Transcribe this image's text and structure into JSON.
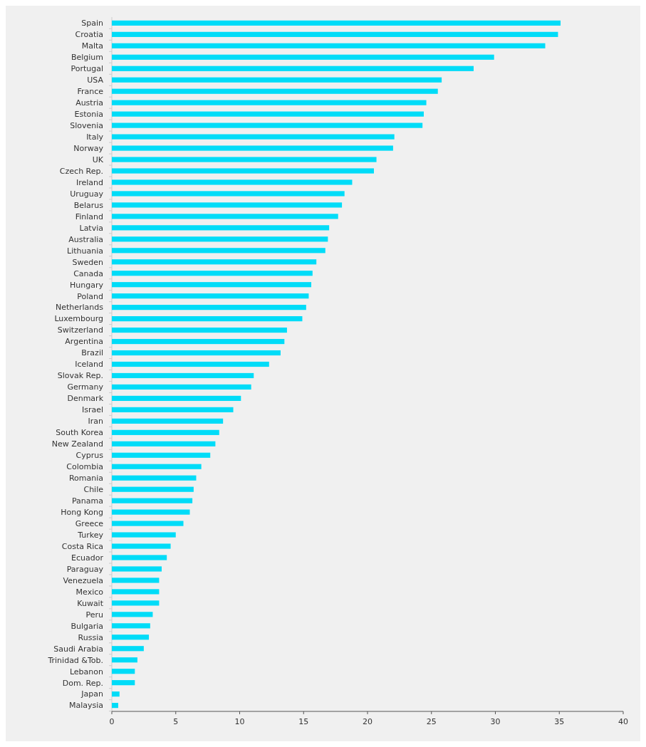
{
  "chart_data": {
    "type": "bar",
    "orientation": "horizontal",
    "categories": [
      "Spain",
      "Croatia",
      "Malta",
      "Belgium",
      "Portugal",
      "USA",
      "France",
      "Austria",
      "Estonia",
      "Slovenia",
      "Italy",
      "Norway",
      "UK",
      "Czech Rep.",
      "Ireland",
      "Uruguay",
      "Belarus",
      "Finland",
      "Latvia",
      "Australia",
      "Lithuania",
      "Sweden",
      "Canada",
      "Hungary",
      "Poland",
      "Netherlands",
      "Luxembourg",
      "Switzerland",
      "Argentina",
      "Brazil",
      "Iceland",
      "Slovak Rep.",
      "Germany",
      "Denmark",
      "Israel",
      "Iran",
      "South Korea",
      "New Zealand",
      "Cyprus",
      "Colombia",
      "Romania",
      "Chile",
      "Panama",
      "Hong Kong",
      "Greece",
      "Turkey",
      "Costa Rica",
      "Ecuador",
      "Paraguay",
      "Venezuela",
      "Mexico",
      "Kuwait",
      "Peru",
      "Bulgaria",
      "Russia",
      "Saudi Arabia",
      "Trinidad &Tob.",
      "Lebanon",
      "Dom. Rep.",
      "Japan",
      "Malaysia"
    ],
    "values": [
      35.1,
      34.9,
      33.9,
      29.9,
      28.3,
      25.8,
      25.5,
      24.6,
      24.4,
      24.3,
      22.1,
      22.0,
      20.7,
      20.5,
      18.8,
      18.2,
      18.0,
      17.7,
      17.0,
      16.9,
      16.7,
      16.0,
      15.7,
      15.6,
      15.4,
      15.2,
      14.9,
      13.7,
      13.5,
      13.2,
      12.3,
      11.1,
      10.9,
      10.1,
      9.5,
      8.7,
      8.4,
      8.1,
      7.7,
      7.0,
      6.6,
      6.4,
      6.3,
      6.1,
      5.6,
      5.0,
      4.6,
      4.3,
      3.9,
      3.7,
      3.7,
      3.7,
      3.2,
      3.0,
      2.9,
      2.5,
      2.0,
      1.8,
      1.8,
      0.6,
      0.5
    ],
    "color": "#00dcf8",
    "xlim": [
      0,
      40
    ],
    "xticks": [
      0,
      5,
      10,
      15,
      20,
      25,
      30,
      35,
      40
    ],
    "grid": false
  }
}
